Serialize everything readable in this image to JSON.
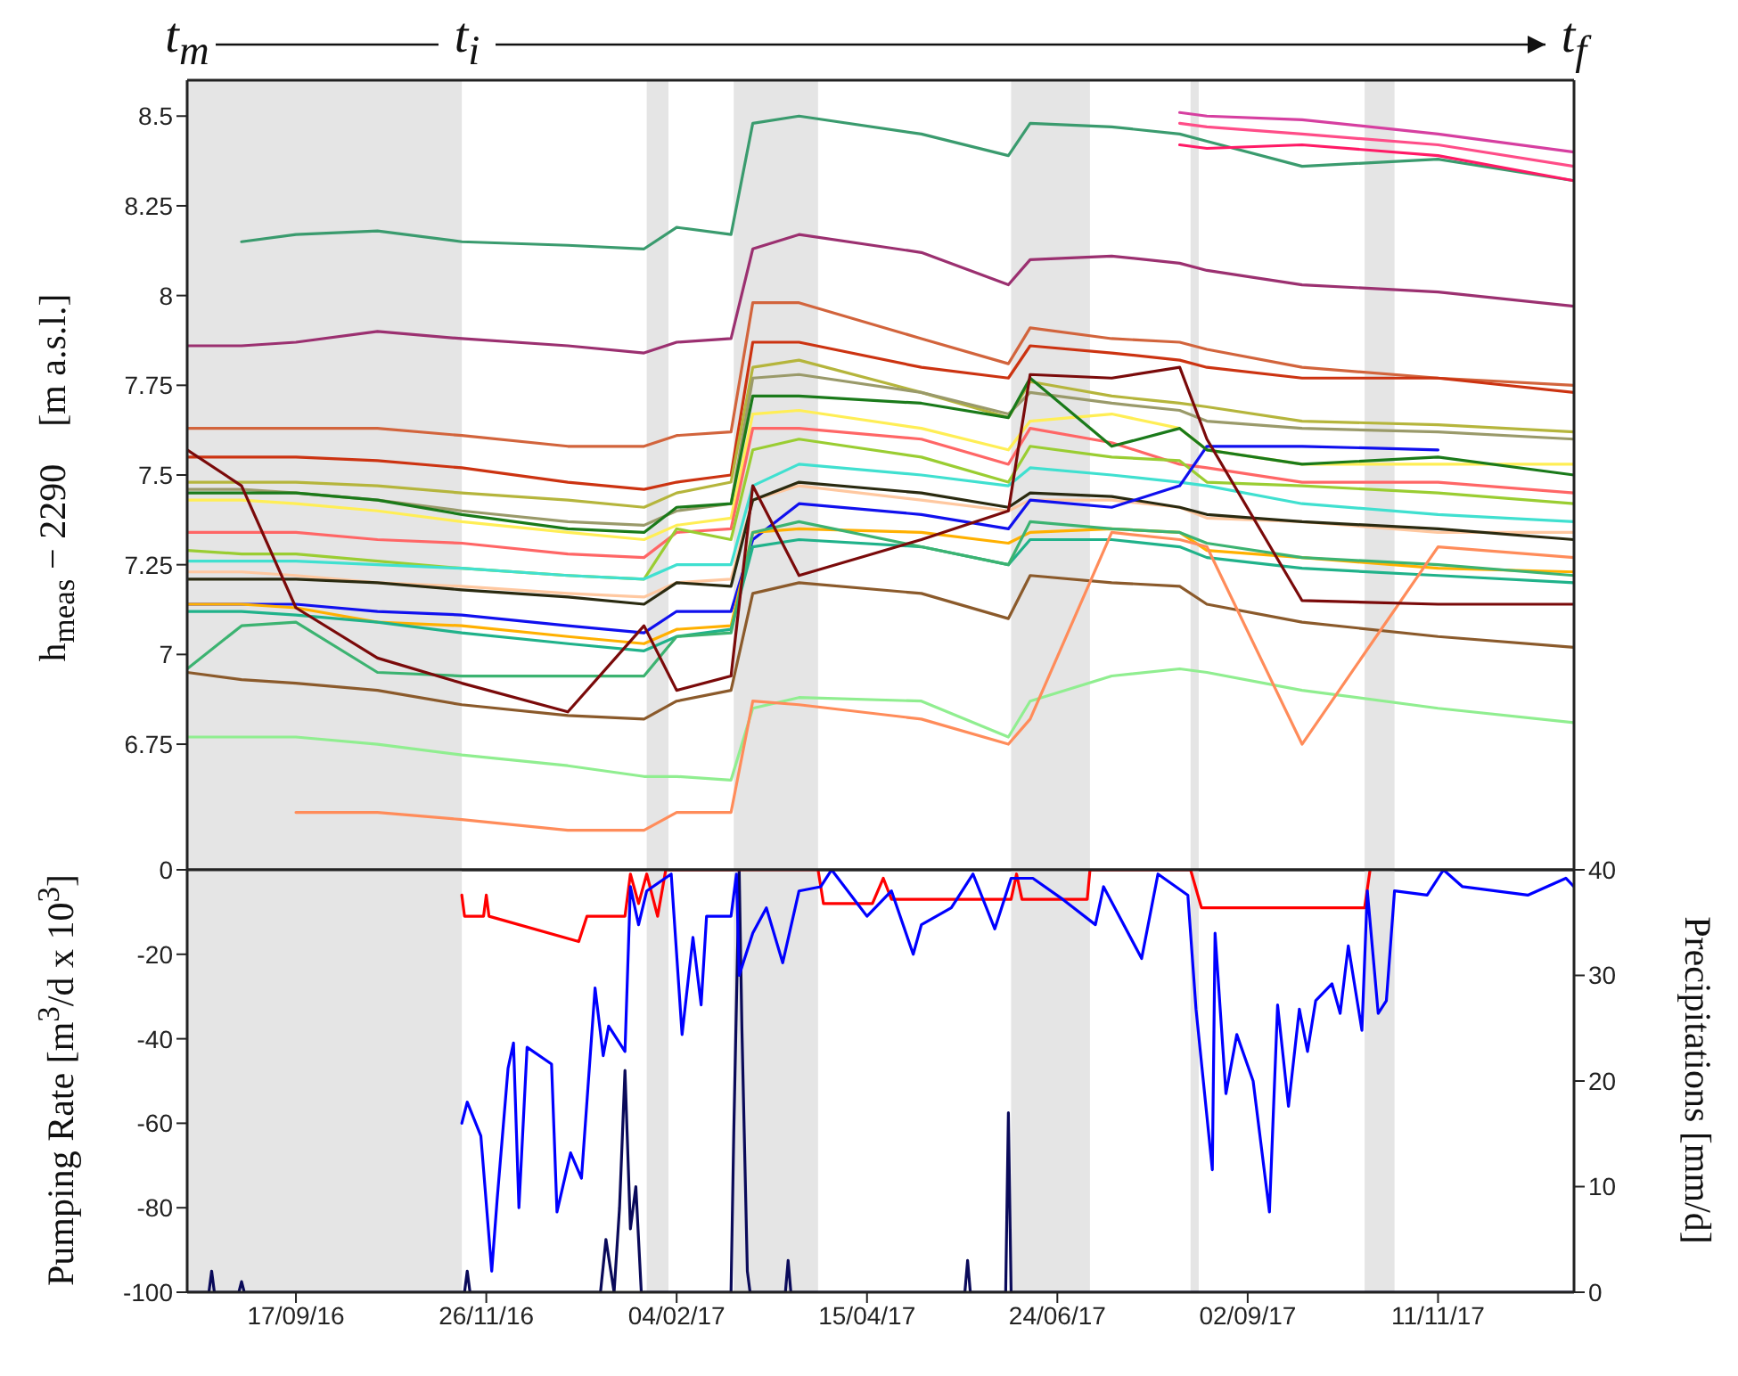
{
  "chart_data": [
    {
      "type": "line",
      "ylabel": "h$_{meas}$ − 2290    [m a.s.l.]",
      "annotations": [
        "t$_{m}$",
        "t$_{i}$",
        "t$_{f}$"
      ],
      "xlim": [
        "2016-08-08",
        "2017-12-31"
      ],
      "ylim": [
        6.4,
        8.6
      ],
      "yticks": [
        6.75,
        7,
        7.25,
        7.5,
        7.75,
        8,
        8.25,
        8.5
      ],
      "tick_labels": "y",
      "x": [
        "2016-08-08",
        "2016-08-28",
        "2016-09-17",
        "2016-10-17",
        "2016-11-17",
        "2016-12-26",
        "2017-01-23",
        "2017-02-04",
        "2017-02-24",
        "2017-03-04",
        "2017-03-21",
        "2017-05-05",
        "2017-06-06",
        "2017-06-14",
        "2017-07-14",
        "2017-08-08",
        "2017-08-18",
        "2017-09-22",
        "2017-11-11",
        "2017-12-31"
      ],
      "bands": [
        {
          "axis": "x",
          "from": "2016-08-08",
          "to": "2016-11-17",
          "color": "#e5e5e5"
        },
        {
          "axis": "x",
          "from": "2017-01-24",
          "to": "2017-02-01",
          "color": "#e5e5e5"
        },
        {
          "axis": "x",
          "from": "2017-02-25",
          "to": "2017-03-28",
          "color": "#e5e5e5"
        },
        {
          "axis": "x",
          "from": "2017-06-07",
          "to": "2017-07-06",
          "color": "#e5e5e5"
        },
        {
          "axis": "x",
          "from": "2017-08-12",
          "to": "2017-08-15",
          "color": "#e5e5e5"
        },
        {
          "axis": "x",
          "from": "2017-10-15",
          "to": "2017-10-26",
          "color": "#e5e5e5"
        }
      ],
      "series": [
        {
          "color": "#3a9b6e",
          "values": [
            null,
            8.15,
            8.17,
            8.18,
            8.15,
            8.14,
            8.13,
            8.19,
            8.17,
            8.48,
            8.5,
            8.45,
            8.39,
            8.48,
            8.47,
            8.45,
            8.43,
            8.36,
            8.38,
            8.32
          ]
        },
        {
          "color": "#d63fa0",
          "values": [
            null,
            null,
            null,
            null,
            null,
            null,
            null,
            null,
            null,
            null,
            null,
            null,
            null,
            null,
            null,
            8.51,
            8.5,
            8.49,
            8.45,
            8.4
          ]
        },
        {
          "color": "#ff4d88",
          "values": [
            null,
            null,
            null,
            null,
            null,
            null,
            null,
            null,
            null,
            null,
            null,
            null,
            null,
            null,
            null,
            8.48,
            8.47,
            8.45,
            8.42,
            8.36
          ]
        },
        {
          "color": "#ff1a66",
          "values": [
            null,
            null,
            null,
            null,
            null,
            null,
            null,
            null,
            null,
            null,
            null,
            null,
            null,
            null,
            null,
            8.42,
            8.41,
            8.42,
            8.39,
            8.32
          ]
        },
        {
          "color": "#9b3070",
          "values": [
            7.86,
            7.86,
            7.87,
            7.9,
            7.88,
            7.86,
            7.84,
            7.87,
            7.88,
            8.13,
            8.17,
            8.12,
            8.03,
            8.1,
            8.11,
            8.09,
            8.07,
            8.03,
            8.01,
            7.97
          ]
        },
        {
          "color": "#d2643c",
          "values": [
            7.63,
            7.63,
            7.63,
            7.63,
            7.61,
            7.58,
            7.58,
            7.61,
            7.62,
            7.98,
            7.98,
            7.88,
            7.81,
            7.91,
            7.88,
            7.87,
            7.85,
            7.8,
            7.77,
            7.75
          ]
        },
        {
          "color": "#cc3311",
          "values": [
            7.55,
            7.55,
            7.55,
            7.54,
            7.52,
            7.48,
            7.46,
            7.48,
            7.5,
            7.87,
            7.87,
            7.8,
            7.77,
            7.86,
            7.84,
            7.82,
            7.8,
            7.77,
            7.77,
            7.73
          ]
        },
        {
          "color": "#b5b53c",
          "values": [
            7.48,
            7.48,
            7.48,
            7.47,
            7.45,
            7.43,
            7.41,
            7.45,
            7.48,
            7.8,
            7.82,
            7.73,
            7.66,
            7.76,
            7.72,
            7.7,
            7.69,
            7.65,
            7.64,
            7.62
          ]
        },
        {
          "color": "#9a9a6a",
          "values": [
            7.46,
            7.46,
            7.45,
            7.43,
            7.4,
            7.37,
            7.36,
            7.4,
            7.42,
            7.77,
            7.78,
            7.73,
            7.67,
            7.73,
            7.7,
            7.68,
            7.65,
            7.63,
            7.62,
            7.6
          ]
        },
        {
          "color": "#ffee55",
          "values": [
            7.43,
            7.43,
            7.42,
            7.4,
            7.37,
            7.34,
            7.32,
            7.36,
            7.38,
            7.67,
            7.68,
            7.63,
            7.57,
            7.65,
            7.67,
            7.63,
            7.57,
            7.53,
            7.53,
            7.53
          ]
        },
        {
          "color": "#ff6666",
          "values": [
            7.34,
            7.34,
            7.34,
            7.32,
            7.31,
            7.28,
            7.27,
            7.34,
            7.35,
            7.63,
            7.63,
            7.6,
            7.53,
            7.63,
            7.59,
            7.53,
            7.52,
            7.48,
            7.48,
            7.45
          ]
        },
        {
          "color": "#9acd32",
          "values": [
            7.29,
            7.28,
            7.28,
            7.26,
            7.24,
            7.22,
            7.21,
            7.35,
            7.32,
            7.57,
            7.6,
            7.55,
            7.48,
            7.58,
            7.55,
            7.54,
            7.48,
            7.47,
            7.45,
            7.42
          ]
        },
        {
          "color": "#40e0d0",
          "values": [
            7.26,
            7.26,
            7.26,
            7.25,
            7.24,
            7.22,
            7.21,
            7.25,
            7.25,
            7.47,
            7.53,
            7.5,
            7.47,
            7.52,
            7.5,
            7.48,
            7.47,
            7.42,
            7.39,
            7.37
          ]
        },
        {
          "color": "#ffc8a0",
          "values": [
            7.23,
            7.23,
            7.22,
            7.2,
            7.19,
            7.17,
            7.16,
            7.2,
            7.21,
            7.43,
            7.47,
            7.43,
            7.4,
            7.43,
            7.43,
            7.41,
            7.38,
            7.37,
            7.34,
            7.34
          ]
        },
        {
          "color": "#2a2a10",
          "values": [
            7.21,
            7.21,
            7.21,
            7.2,
            7.18,
            7.16,
            7.14,
            7.2,
            7.19,
            7.43,
            7.48,
            7.45,
            7.41,
            7.45,
            7.44,
            7.41,
            7.39,
            7.37,
            7.35,
            7.32
          ]
        },
        {
          "color": "#1010ee",
          "values": [
            7.14,
            7.14,
            7.14,
            7.12,
            7.11,
            7.08,
            7.06,
            7.12,
            7.12,
            7.32,
            7.42,
            7.39,
            7.35,
            7.43,
            7.41,
            7.47,
            7.58,
            7.58,
            7.57,
            null
          ]
        },
        {
          "color": "#ffb000",
          "values": [
            7.14,
            7.14,
            7.13,
            7.09,
            7.08,
            7.05,
            7.03,
            7.07,
            7.08,
            7.34,
            7.35,
            7.34,
            7.31,
            7.34,
            7.35,
            7.34,
            7.29,
            7.27,
            7.24,
            7.23
          ]
        },
        {
          "color": "#20b28a",
          "values": [
            7.12,
            7.12,
            7.11,
            7.09,
            7.06,
            7.03,
            7.01,
            7.05,
            7.07,
            7.3,
            7.32,
            7.3,
            7.25,
            7.32,
            7.32,
            7.3,
            7.27,
            7.24,
            7.22,
            7.2
          ]
        },
        {
          "color": "#3cb371",
          "values": [
            6.96,
            7.08,
            7.09,
            6.95,
            6.94,
            6.94,
            6.94,
            7.05,
            7.06,
            7.34,
            7.37,
            7.3,
            7.25,
            7.37,
            7.35,
            7.34,
            7.31,
            7.27,
            7.25,
            7.22
          ]
        },
        {
          "color": "#1a7a1a",
          "values": [
            7.45,
            7.45,
            7.45,
            7.43,
            7.39,
            7.35,
            7.34,
            7.41,
            7.42,
            7.72,
            7.72,
            7.7,
            7.66,
            7.77,
            7.58,
            7.63,
            7.57,
            7.53,
            7.55,
            7.5
          ]
        },
        {
          "color": "#8b5a2b",
          "values": [
            6.95,
            6.93,
            6.92,
            6.9,
            6.86,
            6.83,
            6.82,
            6.87,
            6.9,
            7.17,
            7.2,
            7.17,
            7.1,
            7.22,
            7.2,
            7.19,
            7.14,
            7.09,
            7.05,
            7.02
          ]
        },
        {
          "color": "#90ee90",
          "values": [
            6.77,
            6.77,
            6.77,
            6.75,
            6.72,
            6.69,
            6.66,
            6.66,
            6.65,
            6.85,
            6.88,
            6.87,
            6.77,
            6.87,
            6.94,
            6.96,
            6.95,
            6.9,
            6.85,
            6.81
          ]
        },
        {
          "color": "#ff8c5a",
          "values": [
            null,
            null,
            6.56,
            6.56,
            6.54,
            6.51,
            6.51,
            6.56,
            6.56,
            6.87,
            6.86,
            6.82,
            6.75,
            6.82,
            7.34,
            7.32,
            7.3,
            6.75,
            7.3,
            7.27
          ]
        },
        {
          "color": "#7a0a0a",
          "values": [
            7.57,
            7.47,
            7.13,
            6.99,
            6.92,
            6.84,
            7.08,
            6.9,
            6.94,
            7.47,
            7.22,
            7.32,
            7.4,
            7.78,
            7.77,
            7.8,
            7.6,
            7.15,
            7.14,
            7.14
          ]
        }
      ]
    },
    {
      "type": "line",
      "ylabel": "Pumping Rate [m$^{3}$/d x 10$^{3}$]",
      "y2label": "Precipitations [mm/d]",
      "xlim": [
        "2016-08-08",
        "2017-12-31"
      ],
      "xticks": [
        {
          "value": "2016-09-17",
          "label": "17/09/16"
        },
        {
          "value": "2016-11-26",
          "label": "26/11/16"
        },
        {
          "value": "2017-02-04",
          "label": "04/02/17"
        },
        {
          "value": "2017-04-15",
          "label": "15/04/17"
        },
        {
          "value": "2017-06-24",
          "label": "24/06/17"
        },
        {
          "value": "2017-09-02",
          "label": "02/09/17"
        },
        {
          "value": "2017-11-11",
          "label": "11/11/17"
        }
      ],
      "ylim": [
        -100,
        0
      ],
      "yticks": [
        -100,
        -80,
        -60,
        -40,
        -20,
        0
      ],
      "y2lim": [
        0,
        40
      ],
      "y2ticks": [
        0,
        10,
        20,
        30,
        40
      ],
      "bands": [
        {
          "axis": "x",
          "from": "2016-08-08",
          "to": "2016-11-17",
          "color": "#e5e5e5"
        },
        {
          "axis": "x",
          "from": "2017-01-24",
          "to": "2017-02-01",
          "color": "#e5e5e5"
        },
        {
          "axis": "x",
          "from": "2017-02-25",
          "to": "2017-03-28",
          "color": "#e5e5e5"
        },
        {
          "axis": "x",
          "from": "2017-06-07",
          "to": "2017-07-06",
          "color": "#e5e5e5"
        },
        {
          "axis": "x",
          "from": "2017-08-12",
          "to": "2017-08-15",
          "color": "#e5e5e5"
        },
        {
          "axis": "x",
          "from": "2017-10-15",
          "to": "2017-10-26",
          "color": "#e5e5e5"
        }
      ],
      "series": [
        {
          "color": "#0a0a5a",
          "axis": "y2",
          "x": [
            "2016-08-08",
            "2016-08-16",
            "2016-08-17",
            "2016-08-18",
            "2016-08-27",
            "2016-08-28",
            "2016-08-29",
            "2016-11-18",
            "2016-11-19",
            "2016-11-20",
            "2017-01-07",
            "2017-01-09",
            "2017-01-12",
            "2017-01-14",
            "2017-01-16",
            "2017-01-18",
            "2017-01-20",
            "2017-01-22",
            "2017-02-24",
            "2017-02-25",
            "2017-02-27",
            "2017-02-28",
            "2017-03-02",
            "2017-03-03",
            "2017-03-16",
            "2017-03-17",
            "2017-03-18",
            "2017-05-21",
            "2017-05-22",
            "2017-05-23",
            "2017-06-05",
            "2017-06-06",
            "2017-06-07",
            "2017-12-31"
          ],
          "values": [
            0,
            0,
            2,
            0,
            0,
            1,
            0,
            0,
            2,
            0,
            0,
            5,
            0,
            8,
            21,
            6,
            10,
            0,
            0,
            15,
            40,
            25,
            2,
            0,
            0,
            3,
            0,
            0,
            3,
            0,
            0,
            17,
            0,
            0
          ]
        },
        {
          "color": "#ff0000",
          "x": [
            "2016-11-17",
            "2016-11-18",
            "2016-11-25",
            "2016-11-26",
            "2016-11-27",
            "2016-12-30",
            "2017-01-02",
            "2017-01-16",
            "2017-01-18",
            "2017-01-21",
            "2017-01-24",
            "2017-01-28",
            "2017-01-31",
            "2017-03-28",
            "2017-03-30",
            "2017-04-17",
            "2017-04-21",
            "2017-04-24",
            "2017-06-07",
            "2017-06-09",
            "2017-06-11",
            "2017-07-05",
            "2017-07-06",
            "2017-08-12",
            "2017-08-16",
            "2017-10-15",
            "2017-10-17"
          ],
          "values": [
            -6,
            -11,
            -11,
            -6,
            -11,
            -17,
            -11,
            -11,
            -1,
            -8,
            -1,
            -11,
            0,
            0,
            -8,
            -8,
            -2,
            -7,
            -7,
            -1,
            -7,
            -7,
            0,
            0,
            -9,
            -9,
            0
          ]
        },
        {
          "color": "#0000ff",
          "x": [
            "2016-11-17",
            "2016-11-19",
            "2016-11-24",
            "2016-11-28",
            "2016-11-30",
            "2016-12-04",
            "2016-12-06",
            "2016-12-08",
            "2016-12-11",
            "2016-12-20",
            "2016-12-22",
            "2016-12-27",
            "2016-12-31",
            "2017-01-05",
            "2017-01-08",
            "2017-01-10",
            "2017-01-16",
            "2017-01-18",
            "2017-01-21",
            "2017-01-24",
            "2017-02-02",
            "2017-02-06",
            "2017-02-10",
            "2017-02-13",
            "2017-02-15",
            "2017-02-24",
            "2017-02-26",
            "2017-02-27",
            "2017-03-04",
            "2017-03-09",
            "2017-03-15",
            "2017-03-21",
            "2017-03-29",
            "2017-04-02",
            "2017-04-15",
            "2017-04-24",
            "2017-05-02",
            "2017-05-05",
            "2017-05-16",
            "2017-05-24",
            "2017-06-01",
            "2017-06-07",
            "2017-06-15",
            "2017-06-26",
            "2017-07-08",
            "2017-07-11",
            "2017-07-25",
            "2017-07-31",
            "2017-08-11",
            "2017-08-14",
            "2017-08-20",
            "2017-08-21",
            "2017-08-25",
            "2017-08-29",
            "2017-09-04",
            "2017-09-10",
            "2017-09-13",
            "2017-09-17",
            "2017-09-21",
            "2017-09-24",
            "2017-09-27",
            "2017-10-03",
            "2017-10-06",
            "2017-10-09",
            "2017-10-14",
            "2017-10-16",
            "2017-10-20",
            "2017-10-23",
            "2017-10-26",
            "2017-11-07",
            "2017-11-13",
            "2017-11-20",
            "2017-12-14",
            "2017-12-28",
            "2017-12-31"
          ],
          "values": [
            -60,
            -55,
            -63,
            -95,
            -78,
            -47,
            -41,
            -80,
            -42,
            -46,
            -81,
            -67,
            -73,
            -28,
            -44,
            -37,
            -43,
            -4,
            -13,
            -5,
            -1,
            -39,
            -16,
            -32,
            -11,
            -11,
            -1,
            -25,
            -15,
            -9,
            -22,
            -5,
            -4,
            0,
            -11,
            -5,
            -20,
            -13,
            -9,
            -1,
            -14,
            -2,
            -2,
            -7,
            -13,
            -4,
            -21,
            -1,
            -6,
            -33,
            -71,
            -15,
            -53,
            -39,
            -50,
            -81,
            -32,
            -56,
            -33,
            -43,
            -31,
            -27,
            -34,
            -18,
            -38,
            -5,
            -34,
            -31,
            -5,
            -6,
            0,
            -4,
            -6,
            -2,
            -4
          ]
        }
      ]
    }
  ]
}
